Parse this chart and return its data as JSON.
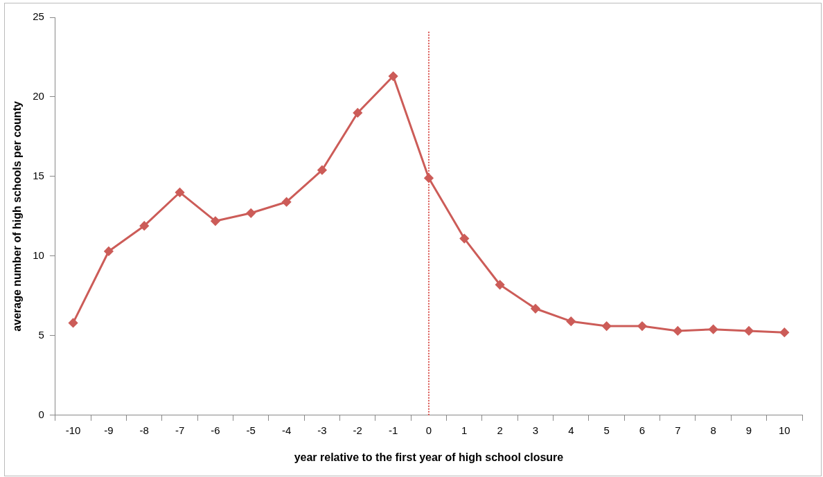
{
  "chart_data": {
    "type": "line",
    "xlabel": "year relative to the first year of high school closure",
    "ylabel": "average number of high schools per county",
    "categories": [
      "-10",
      "-9",
      "-8",
      "-7",
      "-6",
      "-5",
      "-4",
      "-3",
      "-2",
      "-1",
      "0",
      "1",
      "2",
      "3",
      "4",
      "5",
      "6",
      "7",
      "8",
      "9",
      "10"
    ],
    "series": [
      {
        "color": "#cc5c58",
        "values": [
          5.8,
          10.3,
          11.9,
          14.0,
          12.2,
          12.7,
          13.4,
          15.4,
          19.0,
          21.3,
          14.9,
          11.1,
          8.2,
          6.7,
          5.9,
          5.6,
          5.6,
          5.3,
          5.4,
          5.3,
          5.2
        ]
      }
    ],
    "ylim": [
      0,
      25
    ],
    "yticks": [
      0,
      5,
      10,
      15,
      20,
      25
    ],
    "grid": false,
    "legend": false,
    "marker": "diamond",
    "line_style": "solid",
    "ref_lines": [
      {
        "axis": "x",
        "value": "0",
        "color": "#d9534f",
        "line_style": "dotted"
      }
    ]
  }
}
